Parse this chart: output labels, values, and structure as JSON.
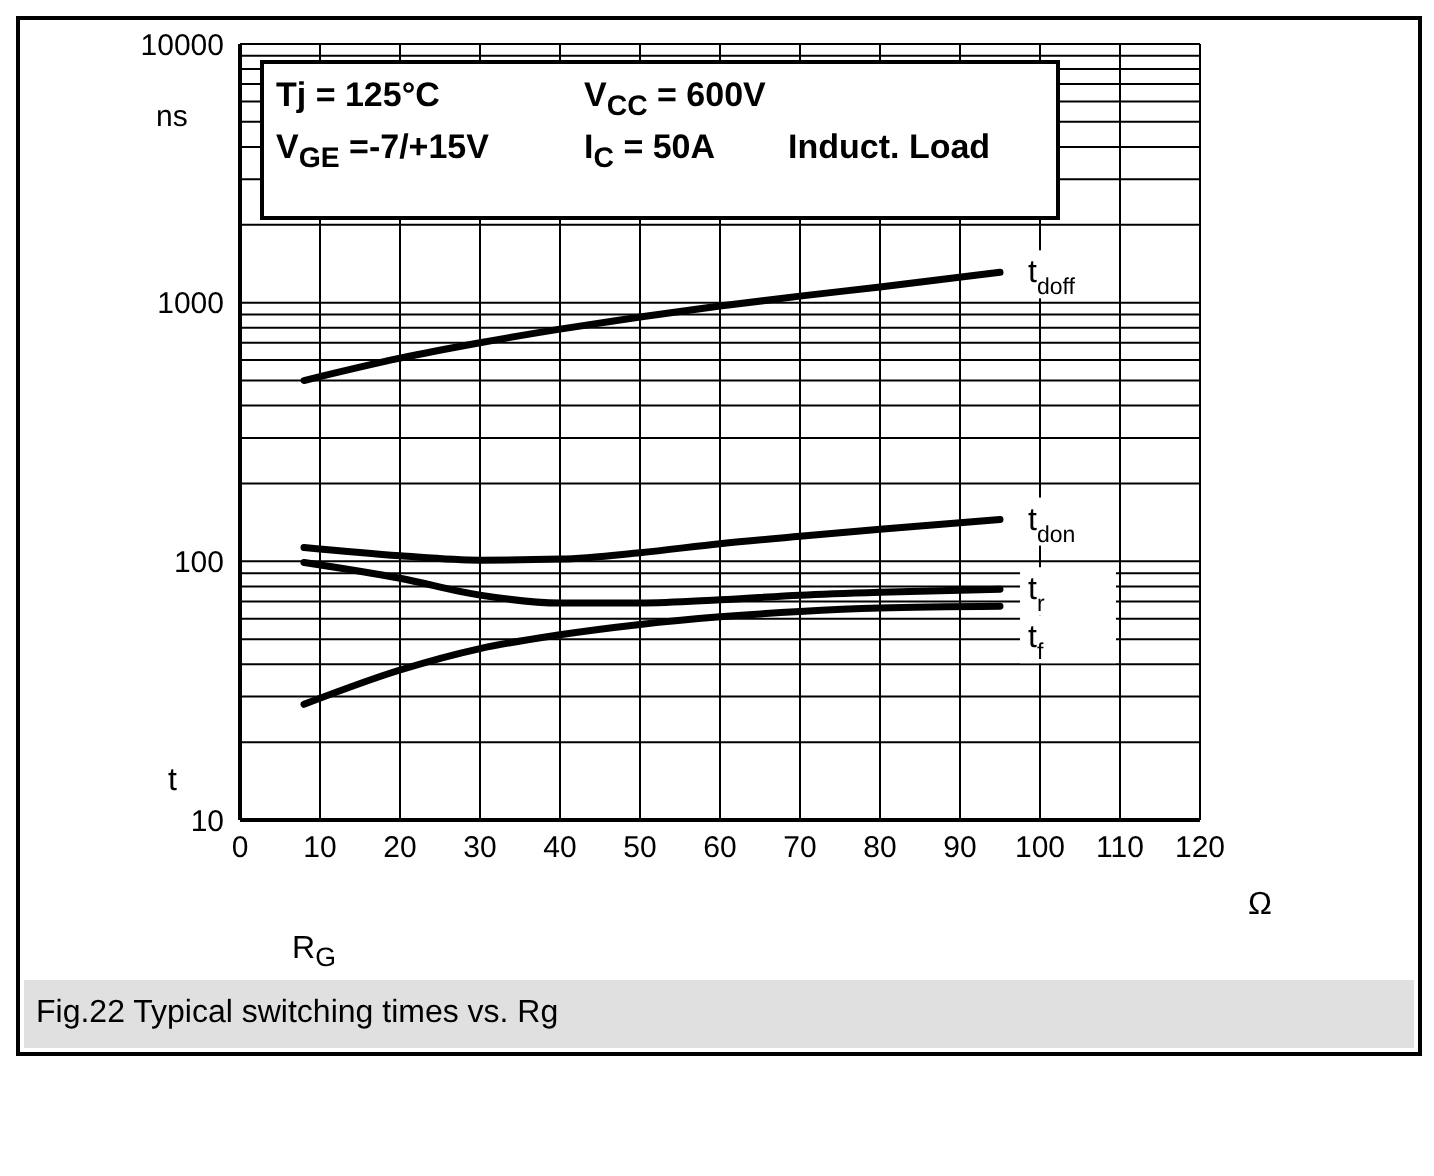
{
  "chart_data": {
    "type": "line",
    "title": "Fig.22 Typical switching times vs. Rg",
    "xlabel": "R$_{G}$",
    "ylabel": "t",
    "annotations": [
      "Tj = 125°C",
      "V$_{CC}$ = 600V",
      "V$_{GE}$ =-7/+15V",
      "I$_{C}$ = 50A",
      "Induct. Load",
      "ns",
      "Ω"
    ],
    "x": [
      8,
      20,
      30,
      40,
      50,
      60,
      70,
      80,
      95
    ],
    "series": [
      {
        "name": "t$_{doff}$",
        "color": "#000000",
        "values": [
          500,
          610,
          700,
          790,
          880,
          970,
          1060,
          1150,
          1310
        ]
      },
      {
        "name": "t$_{don}$",
        "color": "#000000",
        "values": [
          113,
          105,
          101,
          102,
          108,
          117,
          125,
          133,
          145
        ]
      },
      {
        "name": "t$_{r}$",
        "color": "#000000",
        "values": [
          99,
          86,
          74,
          69,
          69,
          71,
          74,
          76,
          78
        ]
      },
      {
        "name": "t$_{f}$",
        "color": "#000000",
        "values": [
          28,
          38,
          46,
          52,
          57,
          61,
          64,
          66,
          67
        ]
      }
    ],
    "xlim": [
      0,
      120
    ],
    "xticks": [
      0,
      10,
      20,
      30,
      40,
      50,
      60,
      70,
      80,
      90,
      100,
      110,
      120
    ],
    "ylim": [
      10,
      10000
    ],
    "yticks": [
      10,
      {
        "value": 20,
        "label": null
      },
      {
        "value": 30,
        "label": null
      },
      {
        "value": 40,
        "label": null
      },
      {
        "value": 50,
        "label": null
      },
      {
        "value": 60,
        "label": null
      },
      {
        "value": 70,
        "label": null
      },
      {
        "value": 80,
        "label": null
      },
      {
        "value": 90,
        "label": null
      },
      100,
      {
        "value": 200,
        "label": null
      },
      {
        "value": 300,
        "label": null
      },
      {
        "value": 400,
        "label": null
      },
      {
        "value": 500,
        "label": null
      },
      {
        "value": 600,
        "label": null
      },
      {
        "value": 700,
        "label": null
      },
      {
        "value": 800,
        "label": null
      },
      {
        "value": 900,
        "label": null
      },
      1000,
      {
        "value": 2000,
        "label": null
      },
      {
        "value": 3000,
        "label": null
      },
      {
        "value": 4000,
        "label": null
      },
      {
        "value": 5000,
        "label": null
      },
      {
        "value": 6000,
        "label": null
      },
      {
        "value": 7000,
        "label": null
      },
      {
        "value": 8000,
        "label": null
      },
      {
        "value": 9000,
        "label": null
      },
      10000
    ],
    "log": true,
    "grid": true
  }
}
